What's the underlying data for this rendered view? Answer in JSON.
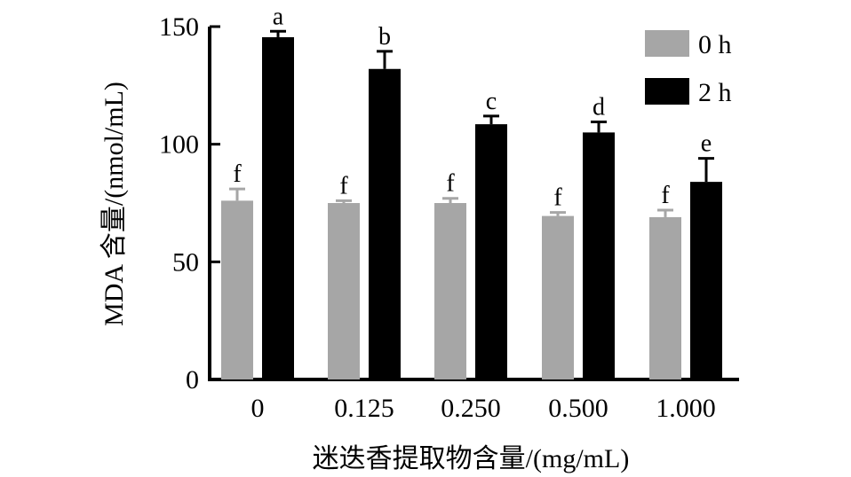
{
  "chart_data": {
    "type": "bar",
    "xlabel": "迷迭香提取物含量/(mg/mL)",
    "ylabel": "MDA 含量/(nmol/mL)",
    "categories": [
      "0",
      "0.125",
      "0.250",
      "0.500",
      "1.000"
    ],
    "ylim": [
      0,
      150
    ],
    "yticks": [
      "0",
      "50",
      "100",
      "150"
    ],
    "legend_position": "top-right",
    "series": [
      {
        "name": "0 h",
        "color": "#a6a6a6",
        "values": [
          76,
          75,
          75,
          69.5,
          69
        ],
        "errors": [
          5,
          1,
          2,
          1.5,
          3
        ],
        "labels": [
          "f",
          "f",
          "f",
          "f",
          "f"
        ]
      },
      {
        "name": "2 h",
        "color": "#000000",
        "values": [
          145.5,
          132,
          108.5,
          105,
          84
        ],
        "errors": [
          2.5,
          7.5,
          3.5,
          4.5,
          10
        ],
        "labels": [
          "a",
          "b",
          "c",
          "d",
          "e"
        ]
      }
    ]
  }
}
